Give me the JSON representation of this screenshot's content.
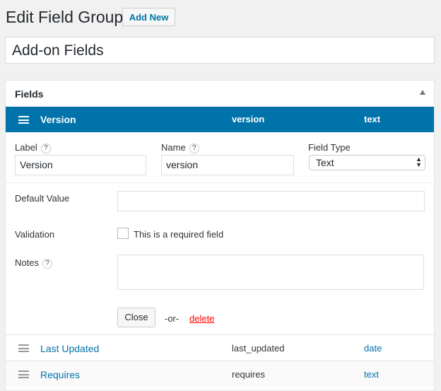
{
  "page": {
    "title": "Edit Field Group",
    "add_new": "Add New",
    "group_title": "Add-on Fields"
  },
  "panel": {
    "title": "Fields",
    "active_field": {
      "label": "Version",
      "name": "version",
      "type": "text"
    },
    "form": {
      "label_label": "Label",
      "label_value": "Version",
      "name_label": "Name",
      "name_value": "version",
      "type_label": "Field Type",
      "type_value": "Text",
      "default_label": "Default Value",
      "default_value": "",
      "validation_label": "Validation",
      "required_text": "This is a required field",
      "required_checked": false,
      "notes_label": "Notes",
      "notes_value": "",
      "close": "Close",
      "or": "-or-",
      "delete": "delete",
      "help": "?"
    },
    "rows": [
      {
        "label": "Last Updated",
        "name": "last_updated",
        "type": "date"
      },
      {
        "label": "Requires",
        "name": "requires",
        "type": "text"
      }
    ]
  },
  "colors": {
    "accent": "#0073aa",
    "delete": "#ff0000"
  }
}
